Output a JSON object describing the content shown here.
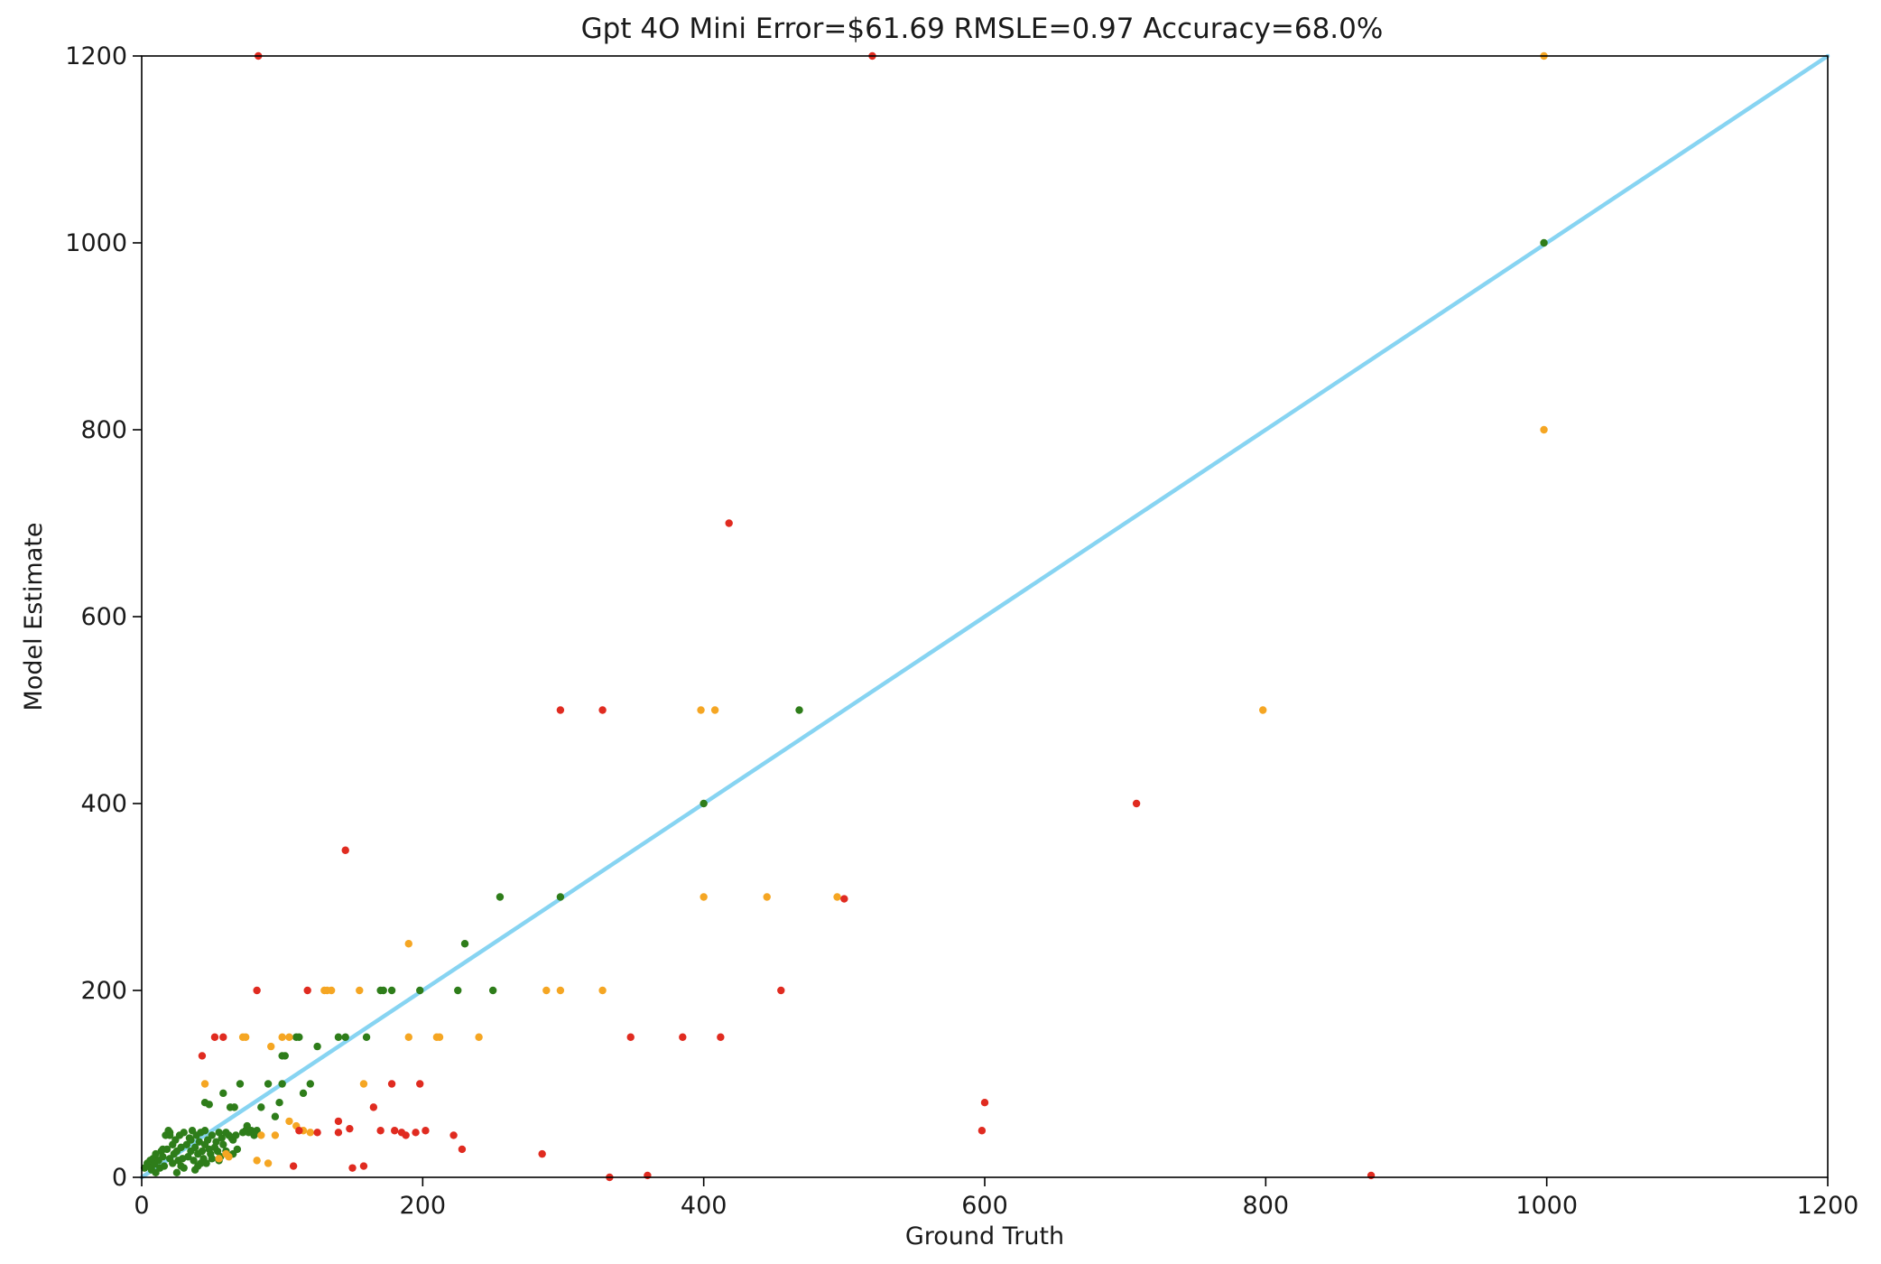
{
  "chart_data": {
    "type": "scatter",
    "title": "Gpt 4O Mini  Error=$61.69  RMSLE=0.97  Accuracy=68.0%",
    "xlabel": "Ground Truth",
    "ylabel": "Model Estimate",
    "xlim": [
      0,
      1200
    ],
    "ylim": [
      0,
      1200
    ],
    "xticks": [
      0,
      200,
      400,
      600,
      800,
      1000,
      1200
    ],
    "yticks": [
      0,
      200,
      400,
      600,
      800,
      1000,
      1200
    ],
    "grid": false,
    "reference_line": {
      "x": [
        0,
        1200
      ],
      "y": [
        0,
        1200
      ],
      "color": "#87d4f2"
    },
    "colors": {
      "green": "#2e7d1a",
      "orange": "#f5a623",
      "red": "#e02b20"
    },
    "series": [
      {
        "color": "green",
        "points": [
          [
            2,
            10
          ],
          [
            4,
            15
          ],
          [
            5,
            12
          ],
          [
            6,
            18
          ],
          [
            7,
            8
          ],
          [
            8,
            20
          ],
          [
            9,
            14
          ],
          [
            10,
            25
          ],
          [
            10,
            5
          ],
          [
            12,
            18
          ],
          [
            13,
            10
          ],
          [
            14,
            28
          ],
          [
            15,
            22
          ],
          [
            16,
            12
          ],
          [
            17,
            45
          ],
          [
            18,
            30
          ],
          [
            19,
            50
          ],
          [
            20,
            20
          ],
          [
            20,
            48
          ],
          [
            22,
            15
          ],
          [
            22,
            35
          ],
          [
            23,
            25
          ],
          [
            24,
            40
          ],
          [
            25,
            28
          ],
          [
            26,
            18
          ],
          [
            27,
            45
          ],
          [
            28,
            32
          ],
          [
            29,
            20
          ],
          [
            30,
            48
          ],
          [
            30,
            10
          ],
          [
            32,
            35
          ],
          [
            33,
            22
          ],
          [
            34,
            42
          ],
          [
            35,
            28
          ],
          [
            36,
            50
          ],
          [
            37,
            18
          ],
          [
            38,
            32
          ],
          [
            39,
            45
          ],
          [
            40,
            25
          ],
          [
            40,
            12
          ],
          [
            41,
            38
          ],
          [
            42,
            48
          ],
          [
            43,
            28
          ],
          [
            44,
            20
          ],
          [
            45,
            35
          ],
          [
            45,
            50
          ],
          [
            46,
            15
          ],
          [
            47,
            40
          ],
          [
            48,
            30
          ],
          [
            49,
            25
          ],
          [
            50,
            45
          ],
          [
            50,
            20
          ],
          [
            52,
            32
          ],
          [
            53,
            38
          ],
          [
            54,
            28
          ],
          [
            55,
            48
          ],
          [
            56,
            22
          ],
          [
            57,
            42
          ],
          [
            58,
            35
          ],
          [
            58,
            90
          ],
          [
            60,
            48
          ],
          [
            60,
            28
          ],
          [
            62,
            45
          ],
          [
            63,
            75
          ],
          [
            64,
            42
          ],
          [
            65,
            40
          ],
          [
            66,
            75
          ],
          [
            67,
            45
          ],
          [
            68,
            30
          ],
          [
            70,
            100
          ],
          [
            72,
            48
          ],
          [
            74,
            50
          ],
          [
            76,
            48
          ],
          [
            78,
            50
          ],
          [
            80,
            45
          ],
          [
            82,
            50
          ],
          [
            85,
            75
          ],
          [
            90,
            100
          ],
          [
            95,
            65
          ],
          [
            98,
            80
          ],
          [
            100,
            130
          ],
          [
            100,
            100
          ],
          [
            102,
            130
          ],
          [
            110,
            150
          ],
          [
            112,
            150
          ],
          [
            115,
            90
          ],
          [
            120,
            100
          ],
          [
            125,
            140
          ],
          [
            140,
            150
          ],
          [
            145,
            150
          ],
          [
            160,
            150
          ],
          [
            170,
            200
          ],
          [
            172,
            200
          ],
          [
            178,
            200
          ],
          [
            198,
            200
          ],
          [
            225,
            200
          ],
          [
            230,
            250
          ],
          [
            250,
            200
          ],
          [
            255,
            300
          ],
          [
            298,
            300
          ],
          [
            400,
            400
          ],
          [
            468,
            500
          ],
          [
            998,
            1000
          ],
          [
            45,
            80
          ],
          [
            48,
            78
          ],
          [
            35,
            40
          ],
          [
            25,
            5
          ],
          [
            20,
            45
          ],
          [
            15,
            30
          ],
          [
            28,
            12
          ],
          [
            38,
            8
          ],
          [
            42,
            15
          ],
          [
            55,
            18
          ],
          [
            65,
            25
          ],
          [
            75,
            55
          ]
        ]
      },
      {
        "color": "orange",
        "points": [
          [
            45,
            100
          ],
          [
            55,
            20
          ],
          [
            60,
            25
          ],
          [
            62,
            22
          ],
          [
            72,
            150
          ],
          [
            74,
            150
          ],
          [
            82,
            18
          ],
          [
            85,
            45
          ],
          [
            90,
            15
          ],
          [
            92,
            140
          ],
          [
            95,
            45
          ],
          [
            100,
            150
          ],
          [
            105,
            150
          ],
          [
            105,
            60
          ],
          [
            110,
            55
          ],
          [
            115,
            50
          ],
          [
            120,
            48
          ],
          [
            130,
            200
          ],
          [
            132,
            200
          ],
          [
            135,
            200
          ],
          [
            155,
            200
          ],
          [
            158,
            100
          ],
          [
            190,
            250
          ],
          [
            190,
            150
          ],
          [
            210,
            150
          ],
          [
            212,
            150
          ],
          [
            240,
            150
          ],
          [
            288,
            200
          ],
          [
            298,
            200
          ],
          [
            328,
            200
          ],
          [
            398,
            500
          ],
          [
            408,
            500
          ],
          [
            400,
            300
          ],
          [
            445,
            300
          ],
          [
            495,
            300
          ],
          [
            798,
            500
          ],
          [
            998,
            800
          ],
          [
            998,
            1200
          ]
        ]
      },
      {
        "color": "red",
        "points": [
          [
            43,
            130
          ],
          [
            52,
            150
          ],
          [
            58,
            150
          ],
          [
            82,
            200
          ],
          [
            83,
            1200
          ],
          [
            108,
            12
          ],
          [
            112,
            50
          ],
          [
            118,
            200
          ],
          [
            125,
            48
          ],
          [
            140,
            48
          ],
          [
            140,
            60
          ],
          [
            145,
            350
          ],
          [
            148,
            52
          ],
          [
            150,
            10
          ],
          [
            158,
            12
          ],
          [
            165,
            75
          ],
          [
            170,
            50
          ],
          [
            178,
            100
          ],
          [
            180,
            50
          ],
          [
            185,
            48
          ],
          [
            188,
            45
          ],
          [
            195,
            48
          ],
          [
            198,
            100
          ],
          [
            202,
            50
          ],
          [
            222,
            45
          ],
          [
            228,
            30
          ],
          [
            285,
            25
          ],
          [
            298,
            500
          ],
          [
            328,
            500
          ],
          [
            333,
            0
          ],
          [
            348,
            150
          ],
          [
            360,
            2
          ],
          [
            385,
            150
          ],
          [
            412,
            150
          ],
          [
            418,
            700
          ],
          [
            455,
            200
          ],
          [
            500,
            298
          ],
          [
            520,
            1200
          ],
          [
            598,
            50
          ],
          [
            600,
            80
          ],
          [
            708,
            400
          ],
          [
            875,
            2
          ]
        ]
      }
    ]
  }
}
